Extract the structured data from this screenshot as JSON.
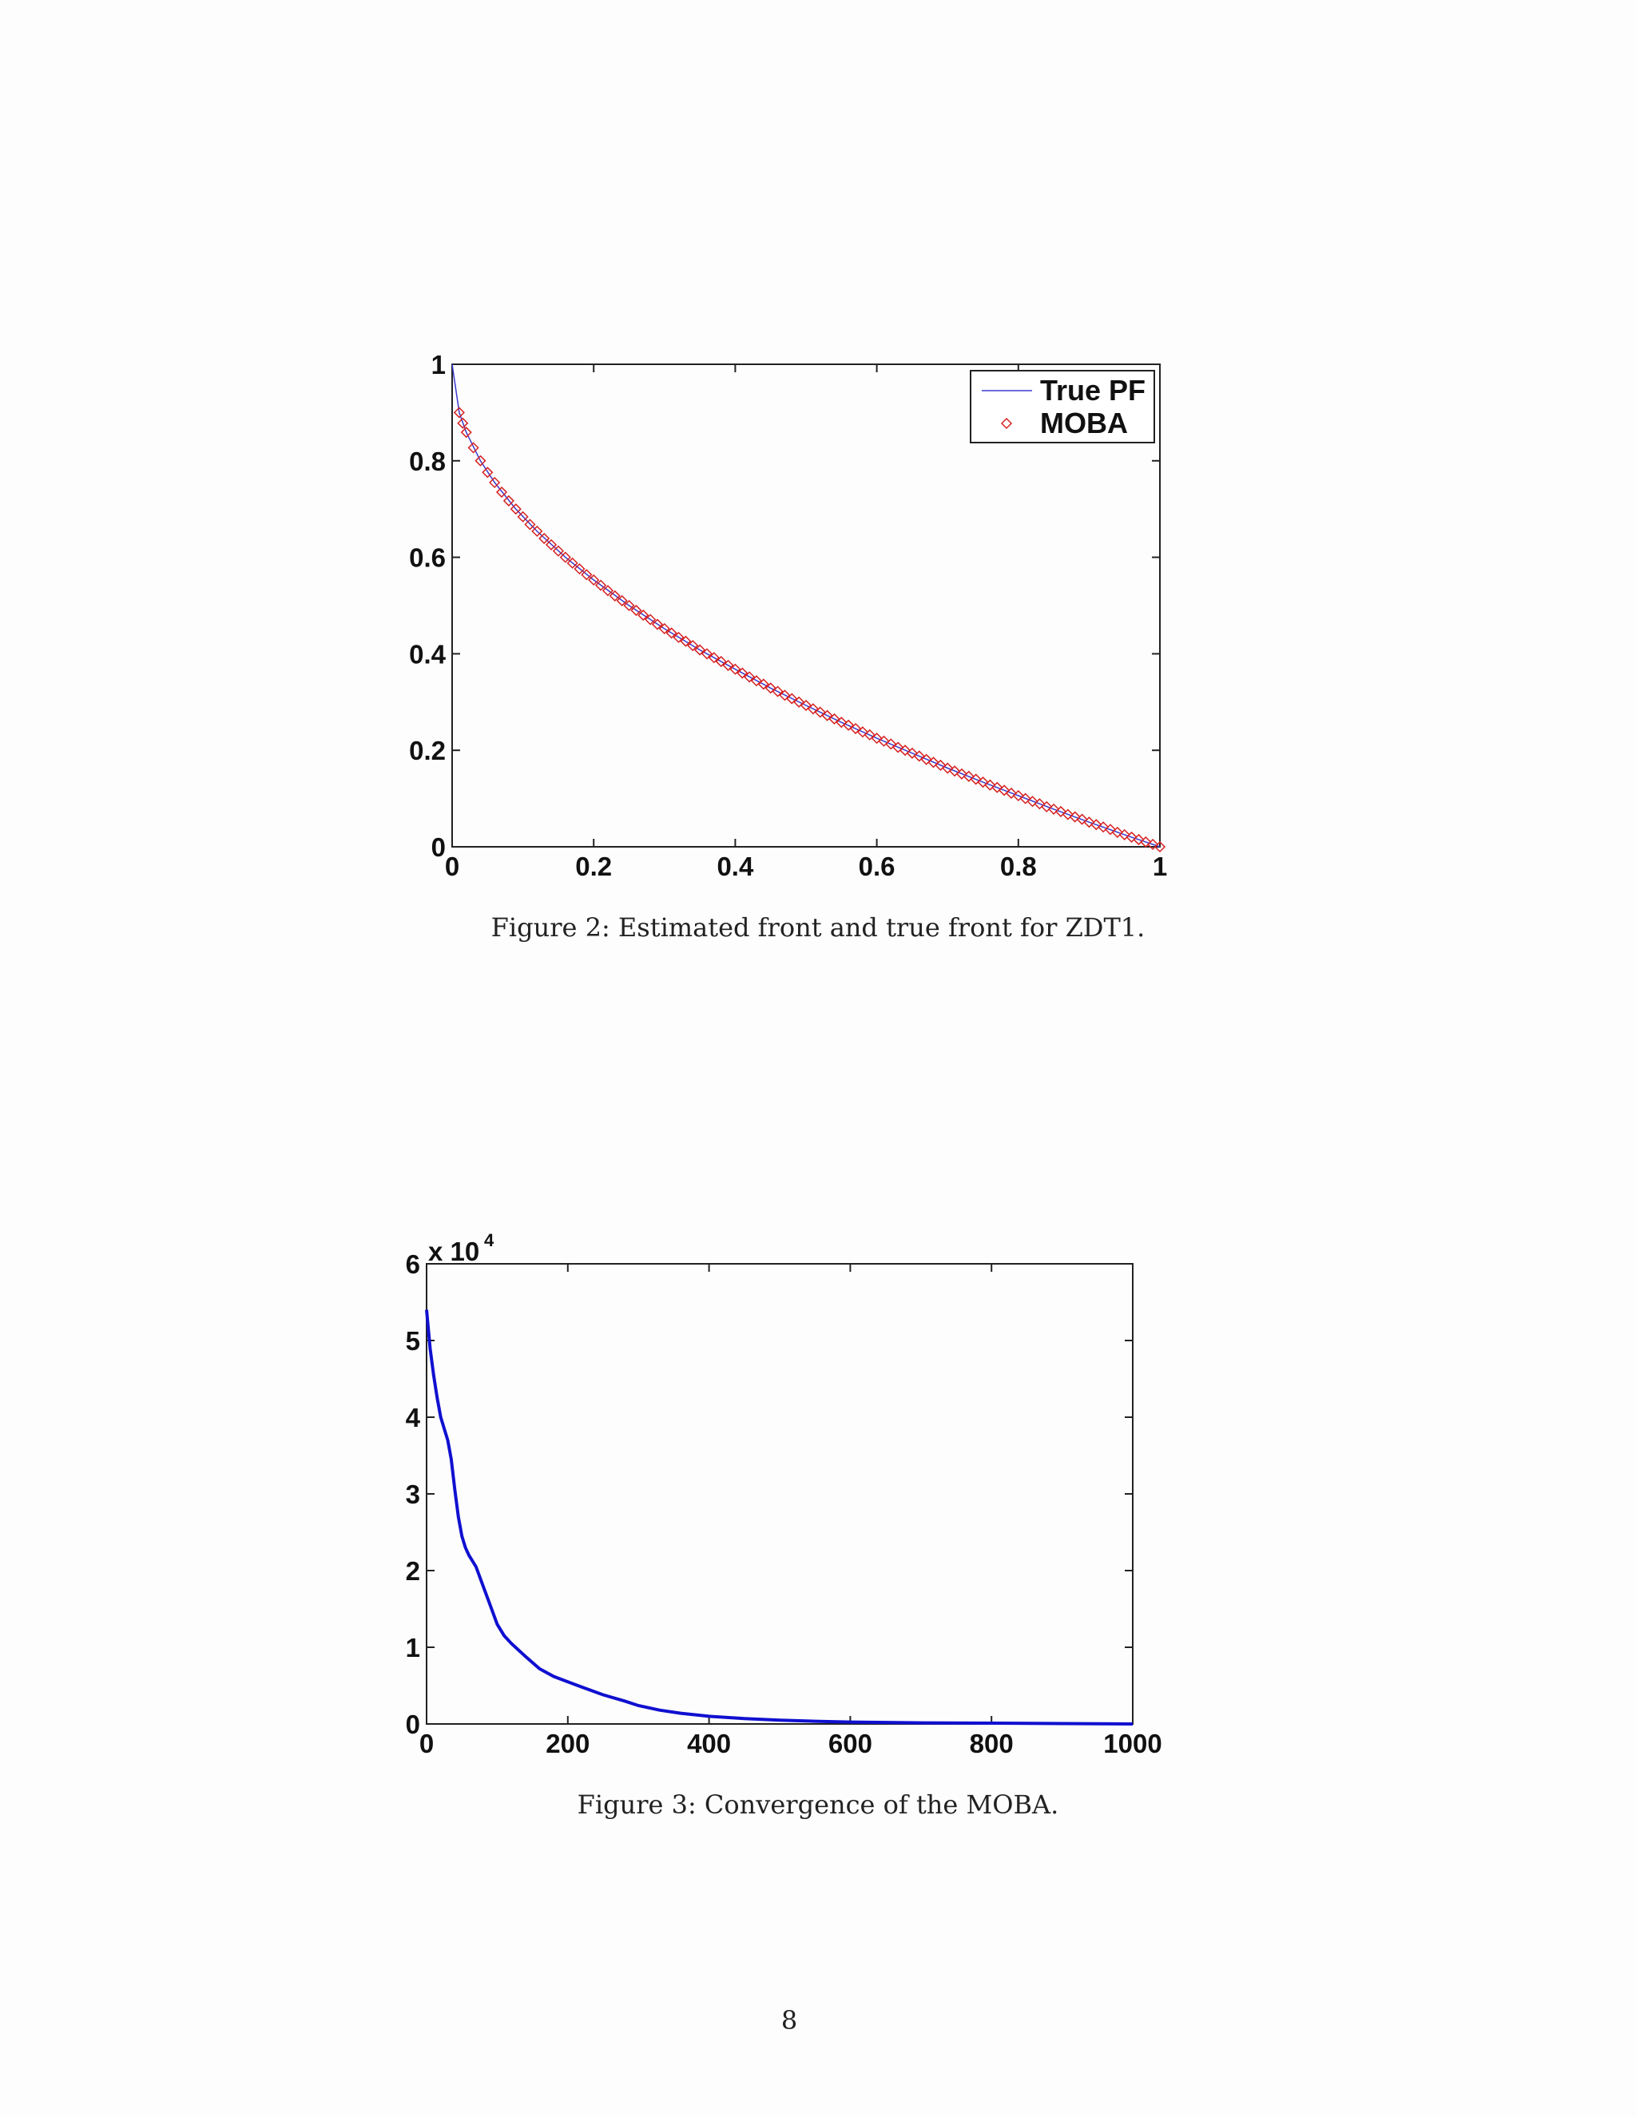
{
  "figures": [
    {
      "caption": "Figure 2: Estimated front and true front for ZDT1.",
      "chart_data": {
        "type": "line",
        "xlim": [
          0,
          1
        ],
        "ylim": [
          0,
          1
        ],
        "xticks": [
          "0",
          "0.2",
          "0.4",
          "0.6",
          "0.8",
          "1"
        ],
        "yticks": [
          "0",
          "0.2",
          "0.4",
          "0.6",
          "0.8",
          "1"
        ],
        "legend_position": "top-right",
        "series": [
          {
            "name": "True PF",
            "style": "line",
            "color": "#3a3ad0",
            "x": [
              0,
              0.01,
              0.02,
              0.04,
              0.06,
              0.09,
              0.12,
              0.16,
              0.2,
              0.25,
              0.3,
              0.35,
              0.4,
              0.45,
              0.5,
              0.55,
              0.6,
              0.65,
              0.7,
              0.75,
              0.8,
              0.85,
              0.9,
              0.95,
              1.0
            ],
            "y": [
              1.0,
              0.9,
              0.859,
              0.8,
              0.755,
              0.7,
              0.654,
              0.6,
              0.553,
              0.5,
              0.452,
              0.408,
              0.368,
              0.329,
              0.293,
              0.258,
              0.225,
              0.194,
              0.163,
              0.134,
              0.106,
              0.078,
              0.051,
              0.025,
              0.0
            ]
          },
          {
            "name": "MOBA",
            "style": "diamond-markers",
            "color": "#d62020",
            "x": [
              0.01,
              0.015,
              0.02,
              0.03,
              0.04,
              0.05,
              0.06,
              0.07,
              0.08,
              0.09,
              0.1,
              0.11,
              0.12,
              0.13,
              0.14,
              0.15,
              0.16,
              0.17,
              0.18,
              0.19,
              0.2,
              0.21,
              0.22,
              0.23,
              0.24,
              0.25,
              0.26,
              0.27,
              0.28,
              0.29,
              0.3,
              0.31,
              0.32,
              0.33,
              0.34,
              0.35,
              0.36,
              0.37,
              0.38,
              0.39,
              0.4,
              0.41,
              0.42,
              0.43,
              0.44,
              0.45,
              0.46,
              0.47,
              0.48,
              0.49,
              0.5,
              0.51,
              0.52,
              0.53,
              0.54,
              0.55,
              0.56,
              0.57,
              0.58,
              0.59,
              0.6,
              0.61,
              0.62,
              0.63,
              0.64,
              0.65,
              0.66,
              0.67,
              0.68,
              0.69,
              0.7,
              0.71,
              0.72,
              0.73,
              0.74,
              0.75,
              0.76,
              0.77,
              0.78,
              0.79,
              0.8,
              0.81,
              0.82,
              0.83,
              0.84,
              0.85,
              0.86,
              0.87,
              0.88,
              0.89,
              0.9,
              0.91,
              0.92,
              0.93,
              0.94,
              0.95,
              0.96,
              0.97,
              0.98,
              0.99,
              1.0
            ],
            "y": [
              0.9,
              0.878,
              0.859,
              0.827,
              0.8,
              0.776,
              0.755,
              0.735,
              0.717,
              0.7,
              0.684,
              0.668,
              0.654,
              0.639,
              0.626,
              0.613,
              0.6,
              0.588,
              0.576,
              0.564,
              0.553,
              0.542,
              0.531,
              0.52,
              0.51,
              0.5,
              0.49,
              0.48,
              0.471,
              0.461,
              0.452,
              0.443,
              0.434,
              0.426,
              0.417,
              0.408,
              0.4,
              0.392,
              0.384,
              0.376,
              0.368,
              0.36,
              0.352,
              0.344,
              0.337,
              0.329,
              0.322,
              0.314,
              0.307,
              0.3,
              0.293,
              0.286,
              0.279,
              0.272,
              0.265,
              0.258,
              0.252,
              0.245,
              0.238,
              0.232,
              0.225,
              0.219,
              0.213,
              0.206,
              0.2,
              0.194,
              0.188,
              0.181,
              0.175,
              0.169,
              0.163,
              0.157,
              0.151,
              0.146,
              0.14,
              0.134,
              0.128,
              0.123,
              0.117,
              0.111,
              0.106,
              0.1,
              0.094,
              0.089,
              0.083,
              0.078,
              0.073,
              0.067,
              0.062,
              0.057,
              0.051,
              0.046,
              0.041,
              0.036,
              0.03,
              0.025,
              0.02,
              0.015,
              0.01,
              0.005,
              0.0
            ]
          }
        ]
      }
    },
    {
      "caption": "Figure 3: Convergence of the MOBA.",
      "chart_data": {
        "type": "line",
        "xlim": [
          0,
          1000
        ],
        "ylim": [
          0,
          6
        ],
        "xticks": [
          "0",
          "200",
          "400",
          "600",
          "800",
          "1000"
        ],
        "yticks": [
          "0",
          "1",
          "2",
          "3",
          "4",
          "5",
          "6"
        ],
        "multiplier_base": "x 10",
        "multiplier_exponent": "4",
        "series": [
          {
            "color": "#1010d0",
            "x": [
              0,
              5,
              10,
              15,
              20,
              25,
              30,
              35,
              40,
              45,
              50,
              55,
              60,
              70,
              80,
              90,
              100,
              110,
              120,
              140,
              160,
              180,
              200,
              220,
              250,
              280,
              300,
              330,
              360,
              400,
              450,
              500,
              550,
              600,
              700,
              800,
              900,
              1000
            ],
            "y": [
              5.4,
              4.9,
              4.55,
              4.25,
              4.0,
              3.85,
              3.7,
              3.45,
              3.05,
              2.7,
              2.45,
              2.3,
              2.2,
              2.05,
              1.8,
              1.55,
              1.3,
              1.15,
              1.05,
              0.88,
              0.72,
              0.62,
              0.55,
              0.48,
              0.38,
              0.3,
              0.24,
              0.18,
              0.14,
              0.1,
              0.07,
              0.05,
              0.035,
              0.025,
              0.015,
              0.01,
              0.005,
              0.0
            ]
          }
        ]
      }
    }
  ],
  "page_number": "8"
}
